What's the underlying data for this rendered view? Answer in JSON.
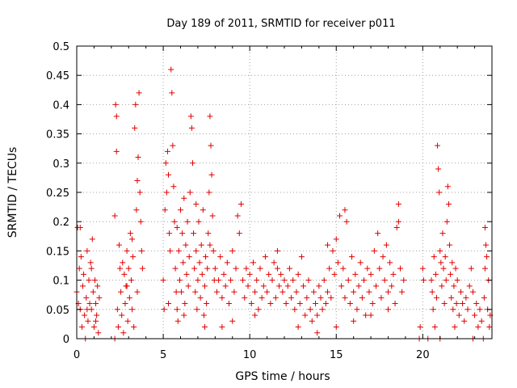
{
  "chart_data": {
    "type": "scatter",
    "title": "Day 189 of 2011, SRMTID for receiver p011",
    "xlabel": "GPS time / hours",
    "ylabel": "SRMTID / TECUs",
    "xlim": [
      0,
      24
    ],
    "ylim": [
      0,
      0.5
    ],
    "x_ticks": [
      "0",
      "5",
      "10",
      "15",
      "20"
    ],
    "y_ticks": [
      "0",
      "0.05",
      "0.1",
      "0.15",
      "0.2",
      "0.25",
      "0.3",
      "0.35",
      "0.4",
      "0.45",
      "0.5"
    ],
    "grid": true,
    "marker": "plus",
    "color": "#e00000",
    "series": [
      {
        "name": "SRMTID",
        "points": [
          [
            0.0,
            0.08
          ],
          [
            0.05,
            0.19
          ],
          [
            0.1,
            0.06
          ],
          [
            0.15,
            0.12
          ],
          [
            0.2,
            0.05
          ],
          [
            0.25,
            0.14
          ],
          [
            0.3,
            0.02
          ],
          [
            0.35,
            0.09
          ],
          [
            0.4,
            0.11
          ],
          [
            0.45,
            0.04
          ],
          [
            0.5,
            0.0
          ],
          [
            0.55,
            0.07
          ],
          [
            0.6,
            0.15
          ],
          [
            0.65,
            0.03
          ],
          [
            0.7,
            0.1
          ],
          [
            0.75,
            0.06
          ],
          [
            0.8,
            0.13
          ],
          [
            0.85,
            0.05
          ],
          [
            0.9,
            0.17
          ],
          [
            0.95,
            0.08
          ],
          [
            1.0,
            0.02
          ],
          [
            1.05,
            0.1
          ],
          [
            1.1,
            0.06
          ],
          [
            1.15,
            0.04
          ],
          [
            1.2,
            0.09
          ],
          [
            1.25,
            0.01
          ],
          [
            1.3,
            0.07
          ],
          [
            0.2,
            0.19
          ],
          [
            0.6,
            0.05
          ],
          [
            0.85,
            0.12
          ],
          [
            1.1,
            0.03
          ],
          [
            2.2,
            0.0
          ],
          [
            2.25,
            0.4
          ],
          [
            2.3,
            0.38
          ],
          [
            2.3,
            0.32
          ],
          [
            2.35,
            0.05
          ],
          [
            2.4,
            0.02
          ],
          [
            2.45,
            0.16
          ],
          [
            2.5,
            0.12
          ],
          [
            2.55,
            0.08
          ],
          [
            2.6,
            0.04
          ],
          [
            2.65,
            0.13
          ],
          [
            2.7,
            0.01
          ],
          [
            2.75,
            0.11
          ],
          [
            2.8,
            0.06
          ],
          [
            2.85,
            0.09
          ],
          [
            2.9,
            0.15
          ],
          [
            2.95,
            0.03
          ],
          [
            3.0,
            0.12
          ],
          [
            3.05,
            0.07
          ],
          [
            3.1,
            0.18
          ],
          [
            3.15,
            0.1
          ],
          [
            3.2,
            0.05
          ],
          [
            3.25,
            0.14
          ],
          [
            3.3,
            0.02
          ],
          [
            3.35,
            0.36
          ],
          [
            3.4,
            0.4
          ],
          [
            3.45,
            0.22
          ],
          [
            3.5,
            0.27
          ],
          [
            3.55,
            0.31
          ],
          [
            3.6,
            0.42
          ],
          [
            3.65,
            0.25
          ],
          [
            3.7,
            0.2
          ],
          [
            3.75,
            0.15
          ],
          [
            3.8,
            0.12
          ],
          [
            2.2,
            0.21
          ],
          [
            2.9,
            0.09
          ],
          [
            3.2,
            0.17
          ],
          [
            3.5,
            0.08
          ],
          [
            5.0,
            0.1
          ],
          [
            5.05,
            0.05
          ],
          [
            5.1,
            0.22
          ],
          [
            5.15,
            0.3
          ],
          [
            5.2,
            0.25
          ],
          [
            5.25,
            0.32
          ],
          [
            5.3,
            0.28
          ],
          [
            5.35,
            0.18
          ],
          [
            5.4,
            0.15
          ],
          [
            5.45,
            0.46
          ],
          [
            5.5,
            0.42
          ],
          [
            5.55,
            0.33
          ],
          [
            5.6,
            0.26
          ],
          [
            5.65,
            0.2
          ],
          [
            5.7,
            0.12
          ],
          [
            5.75,
            0.08
          ],
          [
            5.8,
            0.05
          ],
          [
            5.85,
            0.03
          ],
          [
            5.9,
            0.15
          ],
          [
            5.95,
            0.1
          ],
          [
            6.0,
            0.22
          ],
          [
            6.05,
            0.08
          ],
          [
            6.1,
            0.18
          ],
          [
            6.15,
            0.13
          ],
          [
            6.2,
            0.24
          ],
          [
            6.25,
            0.06
          ],
          [
            6.3,
            0.16
          ],
          [
            6.35,
            0.11
          ],
          [
            6.4,
            0.2
          ],
          [
            6.45,
            0.09
          ],
          [
            6.5,
            0.14
          ],
          [
            6.55,
            0.25
          ],
          [
            6.6,
            0.38
          ],
          [
            6.65,
            0.36
          ],
          [
            6.7,
            0.3
          ],
          [
            6.75,
            0.18
          ],
          [
            6.8,
            0.12
          ],
          [
            6.85,
            0.08
          ],
          [
            6.9,
            0.15
          ],
          [
            6.95,
            0.05
          ],
          [
            7.0,
            0.1
          ],
          [
            7.05,
            0.2
          ],
          [
            7.1,
            0.13
          ],
          [
            7.15,
            0.07
          ],
          [
            7.2,
            0.16
          ],
          [
            7.25,
            0.11
          ],
          [
            7.3,
            0.22
          ],
          [
            7.35,
            0.04
          ],
          [
            7.4,
            0.09
          ],
          [
            7.45,
            0.14
          ],
          [
            7.5,
            0.06
          ],
          [
            7.55,
            0.12
          ],
          [
            7.6,
            0.18
          ],
          [
            7.65,
            0.25
          ],
          [
            7.7,
            0.38
          ],
          [
            7.75,
            0.33
          ],
          [
            7.8,
            0.28
          ],
          [
            7.85,
            0.21
          ],
          [
            7.9,
            0.15
          ],
          [
            7.95,
            0.1
          ],
          [
            5.3,
            0.06
          ],
          [
            5.8,
            0.19
          ],
          [
            6.2,
            0.04
          ],
          [
            6.9,
            0.23
          ],
          [
            7.4,
            0.02
          ],
          [
            7.7,
            0.16
          ],
          [
            8.0,
            0.12
          ],
          [
            8.1,
            0.08
          ],
          [
            8.2,
            0.1
          ],
          [
            8.3,
            0.14
          ],
          [
            8.4,
            0.07
          ],
          [
            8.5,
            0.11
          ],
          [
            8.6,
            0.09
          ],
          [
            8.7,
            0.13
          ],
          [
            8.8,
            0.06
          ],
          [
            8.9,
            0.1
          ],
          [
            9.0,
            0.15
          ],
          [
            9.1,
            0.08
          ],
          [
            9.2,
            0.12
          ],
          [
            9.3,
            0.21
          ],
          [
            9.4,
            0.18
          ],
          [
            9.5,
            0.23
          ],
          [
            9.6,
            0.1
          ],
          [
            9.7,
            0.07
          ],
          [
            9.8,
            0.12
          ],
          [
            9.9,
            0.09
          ],
          [
            10.0,
            0.11
          ],
          [
            10.1,
            0.06
          ],
          [
            10.2,
            0.13
          ],
          [
            10.3,
            0.08
          ],
          [
            10.4,
            0.1
          ],
          [
            10.5,
            0.05
          ],
          [
            10.6,
            0.12
          ],
          [
            10.7,
            0.07
          ],
          [
            10.8,
            0.09
          ],
          [
            10.9,
            0.14
          ],
          [
            11.0,
            0.08
          ],
          [
            11.1,
            0.11
          ],
          [
            11.2,
            0.06
          ],
          [
            11.3,
            0.1
          ],
          [
            11.4,
            0.13
          ],
          [
            11.5,
            0.07
          ],
          [
            11.6,
            0.12
          ],
          [
            11.7,
            0.09
          ],
          [
            11.8,
            0.11
          ],
          [
            11.9,
            0.08
          ],
          [
            12.0,
            0.1
          ],
          [
            12.1,
            0.06
          ],
          [
            12.2,
            0.09
          ],
          [
            12.3,
            0.12
          ],
          [
            12.4,
            0.07
          ],
          [
            12.5,
            0.1
          ],
          [
            12.6,
            0.05
          ],
          [
            12.7,
            0.08
          ],
          [
            12.8,
            0.11
          ],
          [
            12.9,
            0.06
          ],
          [
            13.0,
            0.14
          ],
          [
            13.1,
            0.09
          ],
          [
            13.2,
            0.04
          ],
          [
            13.3,
            0.07
          ],
          [
            13.4,
            0.1
          ],
          [
            13.5,
            0.05
          ],
          [
            13.6,
            0.03
          ],
          [
            13.7,
            0.08
          ],
          [
            13.8,
            0.06
          ],
          [
            13.9,
            0.04
          ],
          [
            14.0,
            0.09
          ],
          [
            14.1,
            0.07
          ],
          [
            14.2,
            0.05
          ],
          [
            14.3,
            0.1
          ],
          [
            14.4,
            0.06
          ],
          [
            14.5,
            0.08
          ],
          [
            14.6,
            0.12
          ],
          [
            14.7,
            0.07
          ],
          [
            14.8,
            0.15
          ],
          [
            14.9,
            0.11
          ],
          [
            8.4,
            0.02
          ],
          [
            9.0,
            0.03
          ],
          [
            10.3,
            0.04
          ],
          [
            11.6,
            0.15
          ],
          [
            12.8,
            0.02
          ],
          [
            13.9,
            0.01
          ],
          [
            14.5,
            0.16
          ],
          [
            15.0,
            0.17
          ],
          [
            15.1,
            0.13
          ],
          [
            15.2,
            0.21
          ],
          [
            15.3,
            0.09
          ],
          [
            15.4,
            0.12
          ],
          [
            15.5,
            0.07
          ],
          [
            15.6,
            0.2
          ],
          [
            15.7,
            0.1
          ],
          [
            15.8,
            0.06
          ],
          [
            15.9,
            0.14
          ],
          [
            16.0,
            0.08
          ],
          [
            16.1,
            0.11
          ],
          [
            16.2,
            0.05
          ],
          [
            16.3,
            0.09
          ],
          [
            16.4,
            0.13
          ],
          [
            16.5,
            0.07
          ],
          [
            16.6,
            0.1
          ],
          [
            16.7,
            0.04
          ],
          [
            16.8,
            0.12
          ],
          [
            16.9,
            0.08
          ],
          [
            17.0,
            0.11
          ],
          [
            17.1,
            0.06
          ],
          [
            17.2,
            0.15
          ],
          [
            17.3,
            0.09
          ],
          [
            17.4,
            0.18
          ],
          [
            17.5,
            0.12
          ],
          [
            17.6,
            0.07
          ],
          [
            17.7,
            0.14
          ],
          [
            17.8,
            0.1
          ],
          [
            17.9,
            0.16
          ],
          [
            18.0,
            0.08
          ],
          [
            18.1,
            0.13
          ],
          [
            18.2,
            0.09
          ],
          [
            18.3,
            0.11
          ],
          [
            18.4,
            0.06
          ],
          [
            18.5,
            0.19
          ],
          [
            18.6,
            0.23
          ],
          [
            18.7,
            0.12
          ],
          [
            18.8,
            0.08
          ],
          [
            18.9,
            0.1
          ],
          [
            15.0,
            0.02
          ],
          [
            16.0,
            0.03
          ],
          [
            17.0,
            0.04
          ],
          [
            18.0,
            0.05
          ],
          [
            15.5,
            0.22
          ],
          [
            18.6,
            0.2
          ],
          [
            19.8,
            0.0
          ],
          [
            19.85,
            0.02
          ],
          [
            20.0,
            0.12
          ],
          [
            20.05,
            0.1
          ],
          [
            20.3,
            0.0
          ],
          [
            20.5,
            0.1
          ],
          [
            20.55,
            0.08
          ],
          [
            20.6,
            0.05
          ],
          [
            20.65,
            0.14
          ],
          [
            20.7,
            0.02
          ],
          [
            20.75,
            0.11
          ],
          [
            20.8,
            0.07
          ],
          [
            20.85,
            0.33
          ],
          [
            20.9,
            0.29
          ],
          [
            20.95,
            0.25
          ],
          [
            21.0,
            0.15
          ],
          [
            21.05,
            0.13
          ],
          [
            21.1,
            0.09
          ],
          [
            21.15,
            0.18
          ],
          [
            21.2,
            0.12
          ],
          [
            21.25,
            0.06
          ],
          [
            21.3,
            0.14
          ],
          [
            21.35,
            0.1
          ],
          [
            21.4,
            0.2
          ],
          [
            21.45,
            0.26
          ],
          [
            21.5,
            0.23
          ],
          [
            21.55,
            0.16
          ],
          [
            21.6,
            0.11
          ],
          [
            21.65,
            0.07
          ],
          [
            21.7,
            0.13
          ],
          [
            21.75,
            0.05
          ],
          [
            21.8,
            0.09
          ],
          [
            21.85,
            0.02
          ],
          [
            21.9,
            0.12
          ],
          [
            21.95,
            0.06
          ],
          [
            22.0,
            0.1
          ],
          [
            22.1,
            0.04
          ],
          [
            22.2,
            0.08
          ],
          [
            22.3,
            0.06
          ],
          [
            22.4,
            0.03
          ],
          [
            22.5,
            0.07
          ],
          [
            22.6,
            0.05
          ],
          [
            22.7,
            0.09
          ],
          [
            22.8,
            0.12
          ],
          [
            22.9,
            0.08
          ],
          [
            23.0,
            0.04
          ],
          [
            23.1,
            0.06
          ],
          [
            23.2,
            0.02
          ],
          [
            23.3,
            0.05
          ],
          [
            23.4,
            0.03
          ],
          [
            23.5,
            0.0
          ],
          [
            23.55,
            0.07
          ],
          [
            23.6,
            0.19
          ],
          [
            23.65,
            0.16
          ],
          [
            23.7,
            0.14
          ],
          [
            23.75,
            0.05
          ],
          [
            23.8,
            0.1
          ],
          [
            23.85,
            0.02
          ],
          [
            23.9,
            0.04
          ],
          [
            21.0,
            0.0
          ],
          [
            22.9,
            0.0
          ],
          [
            23.6,
            0.12
          ]
        ]
      }
    ]
  }
}
